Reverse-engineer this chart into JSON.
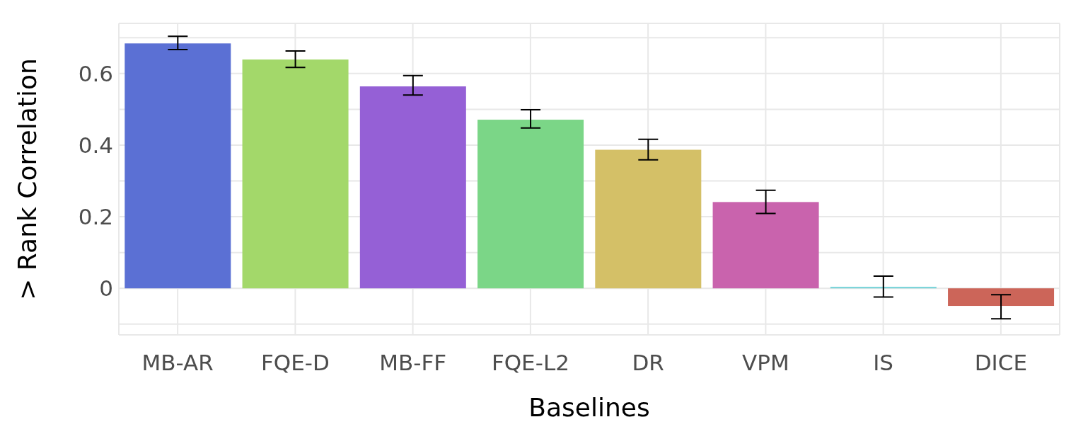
{
  "chart_data": {
    "type": "bar",
    "xlabel": "Baselines",
    "ylabel": "> Rank Correlation",
    "categories": [
      "MB-AR",
      "FQE-D",
      "MB-FF",
      "FQE-L2",
      "DR",
      "VPM",
      "IS",
      "DICE"
    ],
    "values": [
      0.684,
      0.639,
      0.564,
      0.471,
      0.387,
      0.241,
      0.004,
      -0.049
    ],
    "colors": [
      "#5b70d4",
      "#a3d86a",
      "#9560d6",
      "#7bd687",
      "#d4c067",
      "#c963ad",
      "#6fd1d6",
      "#cc6559"
    ],
    "errors": [
      [
        0.667,
        0.704
      ],
      [
        0.617,
        0.663
      ],
      [
        0.54,
        0.594
      ],
      [
        0.448,
        0.499
      ],
      [
        0.359,
        0.416
      ],
      [
        0.209,
        0.274
      ],
      [
        -0.024,
        0.034
      ],
      [
        -0.085,
        -0.018
      ]
    ],
    "ylim": [
      -0.13,
      0.74
    ],
    "yticks": [
      {
        "value": -0.1,
        "label": null
      },
      0,
      {
        "value": 0.1,
        "label": null
      },
      {
        "value": 0.2,
        "label": "0.2"
      },
      {
        "value": 0.3,
        "label": null
      },
      {
        "value": 0.4,
        "label": "0.4"
      },
      {
        "value": 0.5,
        "label": null
      },
      {
        "value": 0.6,
        "label": "0.6"
      },
      {
        "value": 0.7,
        "label": null
      }
    ],
    "grid": true
  }
}
